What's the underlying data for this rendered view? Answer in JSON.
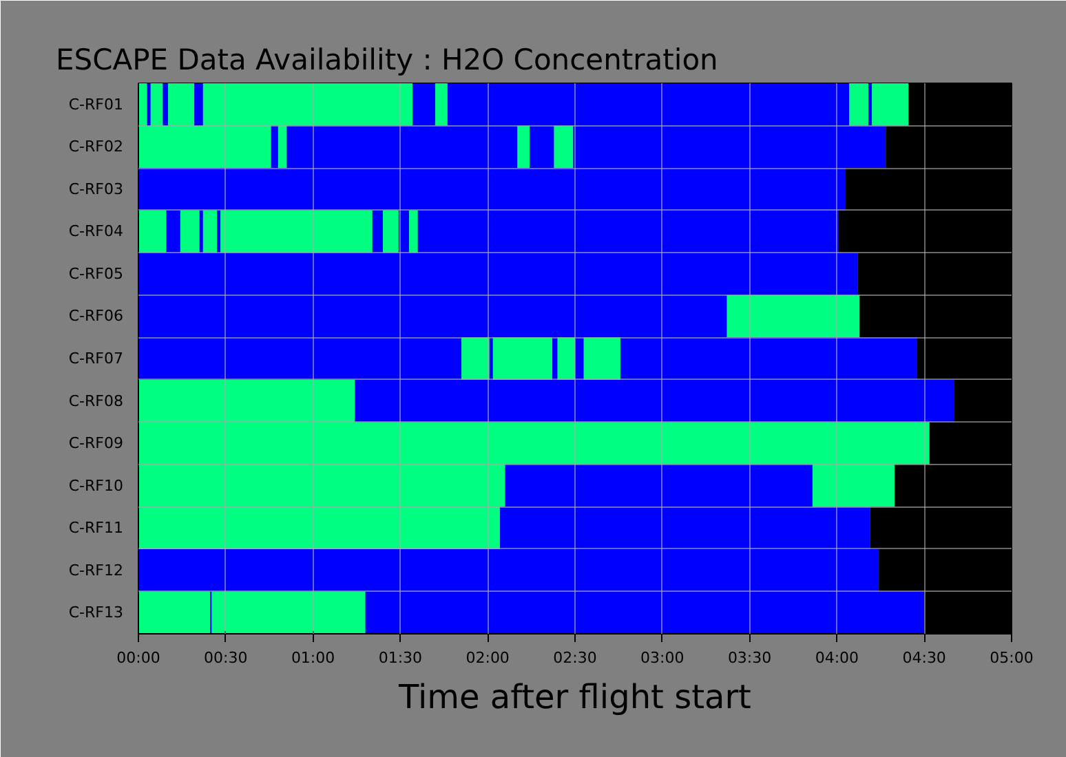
{
  "chart_data": {
    "type": "bar",
    "orientation": "horizontal",
    "stacked": true,
    "title": "ESCAPE Data Availability : H2O Concentration",
    "xlabel": "Time after flight start",
    "categories": [
      "C-RF01",
      "C-RF02",
      "C-RF03",
      "C-RF04",
      "C-RF05",
      "C-RF06",
      "C-RF07",
      "C-RF08",
      "C-RF09",
      "C-RF10",
      "C-RF11",
      "C-RF12",
      "C-RF13"
    ],
    "xlim": [
      0,
      5
    ],
    "xticks": [
      {
        "value": 0,
        "label": "00:00"
      },
      {
        "value": 0.5,
        "label": "00:30"
      },
      {
        "value": 1,
        "label": "01:00"
      },
      {
        "value": 1.5,
        "label": "01:30"
      },
      {
        "value": 2,
        "label": "02:00"
      },
      {
        "value": 2.5,
        "label": "02:30"
      },
      {
        "value": 3,
        "label": "03:00"
      },
      {
        "value": 3.5,
        "label": "03:30"
      },
      {
        "value": 4,
        "label": "04:00"
      },
      {
        "value": 4.5,
        "label": "04:30"
      },
      {
        "value": 5,
        "label": "05:00"
      }
    ],
    "grid": true,
    "series": [
      {
        "values": [
          0.05,
          0.76,
          4.05,
          0.16,
          4.12,
          3.37,
          1.85,
          1.24,
          4.53,
          2.1,
          2.07,
          4.24,
          0.41
        ],
        "colors": [
          "#00ff80",
          "#00ff80",
          "#0000ff",
          "#00ff80",
          "#0000ff",
          "#0000ff",
          "#0000ff",
          "#00ff80",
          "#00ff80",
          "#00ff80",
          "#00ff80",
          "#0000ff",
          "#00ff80"
        ]
      },
      {
        "values": [
          0.02,
          0.04,
          0.95,
          0.08,
          0.88,
          0.76,
          0.16,
          3.43,
          0.47,
          1.76,
          2.12,
          0.76,
          0.01
        ],
        "colors": [
          "#0000ff",
          "#0000ff",
          "#000000",
          "#0000ff",
          "#000000",
          "#00ff80",
          "#00ff80",
          "#0000ff",
          "#000000",
          "#0000ff",
          "#0000ff",
          "#000000",
          "#0000ff"
        ]
      },
      {
        "values": [
          0.07,
          0.05,
          null,
          0.11,
          null,
          0.87,
          0.02,
          0.33,
          null,
          0.47,
          0.81,
          null,
          0.88
        ],
        "colors": [
          "#00ff80",
          "#00ff80",
          null,
          "#00ff80",
          null,
          "#000000",
          "#0000ff",
          "#000000",
          null,
          "#00ff80",
          "#000000",
          null,
          "#00ff80"
        ]
      },
      {
        "values": [
          0.03,
          1.32,
          null,
          0.02,
          null,
          null,
          0.34,
          null,
          null,
          0.67,
          null,
          null,
          3.2
        ],
        "colors": [
          "#0000ff",
          "#0000ff",
          null,
          "#0000ff",
          null,
          null,
          "#00ff80",
          null,
          null,
          "#000000",
          null,
          null,
          "#0000ff"
        ]
      },
      {
        "values": [
          0.15,
          0.07,
          null,
          0.08,
          null,
          null,
          0.03,
          null,
          null,
          null,
          null,
          null,
          0.5
        ],
        "colors": [
          "#00ff80",
          "#00ff80",
          null,
          "#00ff80",
          null,
          null,
          "#0000ff",
          null,
          null,
          null,
          null,
          null,
          "#000000"
        ]
      },
      {
        "values": [
          0.05,
          0.14,
          null,
          0.02,
          null,
          null,
          0.1,
          null,
          null,
          null,
          null,
          null,
          null
        ],
        "colors": [
          "#0000ff",
          "#0000ff",
          null,
          "#0000ff",
          null,
          null,
          "#00ff80",
          null,
          null,
          null,
          null,
          null,
          null
        ]
      },
      {
        "values": [
          1.2,
          0.11,
          null,
          0.87,
          null,
          null,
          0.05,
          null,
          null,
          null,
          null,
          null,
          null
        ],
        "colors": [
          "#00ff80",
          "#00ff80",
          null,
          "#00ff80",
          null,
          null,
          "#0000ff",
          null,
          null,
          null,
          null,
          null,
          null
        ]
      },
      {
        "values": [
          0.13,
          1.79,
          null,
          0.06,
          null,
          null,
          0.21,
          null,
          null,
          null,
          null,
          null,
          null
        ],
        "colors": [
          "#0000ff",
          "#0000ff",
          null,
          "#0000ff",
          null,
          null,
          "#00ff80",
          null,
          null,
          null,
          null,
          null,
          null
        ]
      },
      {
        "values": [
          0.07,
          0.72,
          null,
          0.09,
          null,
          null,
          1.7,
          null,
          null,
          null,
          null,
          null,
          null
        ],
        "colors": [
          "#00ff80",
          "#000000",
          null,
          "#00ff80",
          null,
          null,
          "#0000ff",
          null,
          null,
          null,
          null,
          null,
          null
        ]
      },
      {
        "values": [
          2.3,
          null,
          null,
          0.06,
          null,
          null,
          0.54,
          null,
          null,
          null,
          null,
          null,
          null
        ],
        "colors": [
          "#0000ff",
          null,
          null,
          "#0000ff",
          null,
          null,
          "#000000",
          null,
          null,
          null,
          null,
          null,
          null
        ]
      },
      {
        "values": [
          0.11,
          null,
          null,
          0.05,
          null,
          null,
          null,
          null,
          null,
          null,
          null,
          null,
          null
        ],
        "colors": [
          "#00ff80",
          null,
          null,
          "#00ff80",
          null,
          null,
          null,
          null,
          null,
          null,
          null,
          null,
          null
        ]
      },
      {
        "values": [
          0.02,
          null,
          null,
          2.41,
          null,
          null,
          null,
          null,
          null,
          null,
          null,
          null,
          null
        ],
        "colors": [
          "#0000ff",
          null,
          null,
          "#0000ff",
          null,
          null,
          null,
          null,
          null,
          null,
          null,
          null,
          null
        ]
      },
      {
        "values": [
          0.21,
          null,
          null,
          0.99,
          null,
          null,
          null,
          null,
          null,
          null,
          null,
          null,
          null
        ],
        "colors": [
          "#00ff80",
          null,
          null,
          "#000000",
          null,
          null,
          null,
          null,
          null,
          null,
          null,
          null,
          null
        ]
      },
      {
        "values": [
          0.59,
          null,
          null,
          null,
          null,
          null,
          null,
          null,
          null,
          null,
          null,
          null,
          null
        ],
        "colors": [
          "#000000",
          null,
          null,
          null,
          null,
          null,
          null,
          null,
          null,
          null,
          null,
          null,
          null
        ]
      }
    ]
  }
}
